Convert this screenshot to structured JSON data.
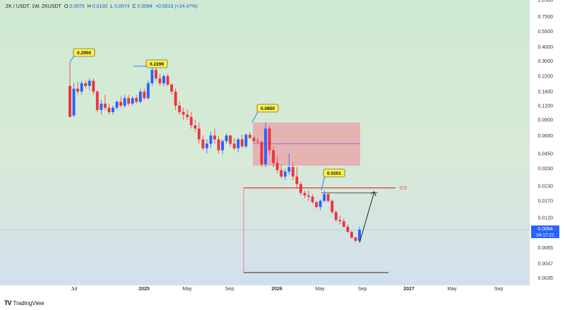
{
  "header": {
    "symbol": "ZK / USDT, 1W, ZKUSDT",
    "o_label": "O",
    "o_value": "0.0075",
    "h_label": "H",
    "h_value": "0.0100",
    "l_label": "L",
    "l_value": "0.0074",
    "c_label": "C",
    "c_value": "0.0094",
    "change": "+0.0018 (+24.47%)"
  },
  "branding": {
    "text": "TradingView",
    "mark": "TV"
  },
  "colors": {
    "up": "#2962ff",
    "down": "#ef3340",
    "bg_top": "#cfe9d2",
    "bg_bottom": "#d2e0ee",
    "zone_fill": "#e8a0a6",
    "zone_mid_line": "#9b6fd6",
    "resistance": "#e53935",
    "label_bg": "#fff04a",
    "price_tag": "#2962ff"
  },
  "chart_data": {
    "type": "candlestick",
    "y_scale": "log",
    "y_ticks": [
      "1.0500",
      "0.7500",
      "0.5500",
      "0.4000",
      "0.3000",
      "0.2200",
      "0.1600",
      "0.1200",
      "0.0900",
      "0.0650",
      "0.0450",
      "0.0330",
      "0.0230",
      "0.0170",
      "0.0120",
      "0.0065",
      "0.0047",
      "0.0035"
    ],
    "x_ticks": [
      "Jul",
      "2025",
      "May",
      "Sep",
      "2026",
      "May",
      "Sep",
      "2027",
      "May",
      "Sep"
    ],
    "x_ticks_bold": [
      "2025",
      "2026",
      "2027"
    ],
    "current_price": "0.0094",
    "countdown": "04:17:22",
    "callouts": [
      "0.2950",
      "0.2299",
      "0.0850",
      "0.0201"
    ],
    "fib_label": "0.5",
    "fib_level": 0.0222,
    "zone": {
      "top": 0.085,
      "bottom": 0.035,
      "mid": 0.055
    },
    "support_level": 0.0039,
    "target_level": 0.02,
    "candles": [
      {
        "o": 0.18,
        "h": 0.295,
        "l": 0.095,
        "c": 0.095
      },
      {
        "o": 0.098,
        "h": 0.19,
        "l": 0.095,
        "c": 0.17
      },
      {
        "o": 0.17,
        "h": 0.195,
        "l": 0.15,
        "c": 0.16
      },
      {
        "o": 0.16,
        "h": 0.2,
        "l": 0.15,
        "c": 0.19
      },
      {
        "o": 0.19,
        "h": 0.2,
        "l": 0.17,
        "c": 0.18
      },
      {
        "o": 0.18,
        "h": 0.21,
        "l": 0.165,
        "c": 0.2
      },
      {
        "o": 0.2,
        "h": 0.21,
        "l": 0.15,
        "c": 0.16
      },
      {
        "o": 0.16,
        "h": 0.165,
        "l": 0.105,
        "c": 0.11
      },
      {
        "o": 0.11,
        "h": 0.135,
        "l": 0.1,
        "c": 0.125
      },
      {
        "o": 0.125,
        "h": 0.15,
        "l": 0.11,
        "c": 0.115
      },
      {
        "o": 0.115,
        "h": 0.125,
        "l": 0.1,
        "c": 0.105
      },
      {
        "o": 0.105,
        "h": 0.12,
        "l": 0.1,
        "c": 0.115
      },
      {
        "o": 0.115,
        "h": 0.135,
        "l": 0.11,
        "c": 0.13
      },
      {
        "o": 0.13,
        "h": 0.145,
        "l": 0.115,
        "c": 0.12
      },
      {
        "o": 0.12,
        "h": 0.15,
        "l": 0.115,
        "c": 0.14
      },
      {
        "o": 0.14,
        "h": 0.15,
        "l": 0.12,
        "c": 0.125
      },
      {
        "o": 0.125,
        "h": 0.145,
        "l": 0.12,
        "c": 0.14
      },
      {
        "o": 0.14,
        "h": 0.15,
        "l": 0.125,
        "c": 0.13
      },
      {
        "o": 0.13,
        "h": 0.17,
        "l": 0.125,
        "c": 0.16
      },
      {
        "o": 0.16,
        "h": 0.17,
        "l": 0.135,
        "c": 0.14
      },
      {
        "o": 0.14,
        "h": 0.2,
        "l": 0.135,
        "c": 0.19
      },
      {
        "o": 0.19,
        "h": 0.27,
        "l": 0.18,
        "c": 0.25
      },
      {
        "o": 0.25,
        "h": 0.26,
        "l": 0.2,
        "c": 0.21
      },
      {
        "o": 0.21,
        "h": 0.23,
        "l": 0.18,
        "c": 0.19
      },
      {
        "o": 0.19,
        "h": 0.23,
        "l": 0.18,
        "c": 0.22
      },
      {
        "o": 0.22,
        "h": 0.23,
        "l": 0.18,
        "c": 0.185
      },
      {
        "o": 0.185,
        "h": 0.19,
        "l": 0.15,
        "c": 0.16
      },
      {
        "o": 0.16,
        "h": 0.17,
        "l": 0.11,
        "c": 0.12
      },
      {
        "o": 0.12,
        "h": 0.13,
        "l": 0.1,
        "c": 0.105
      },
      {
        "o": 0.105,
        "h": 0.115,
        "l": 0.09,
        "c": 0.1
      },
      {
        "o": 0.1,
        "h": 0.11,
        "l": 0.09,
        "c": 0.095
      },
      {
        "o": 0.095,
        "h": 0.105,
        "l": 0.075,
        "c": 0.08
      },
      {
        "o": 0.08,
        "h": 0.09,
        "l": 0.07,
        "c": 0.075
      },
      {
        "o": 0.075,
        "h": 0.085,
        "l": 0.055,
        "c": 0.06
      },
      {
        "o": 0.06,
        "h": 0.065,
        "l": 0.048,
        "c": 0.05
      },
      {
        "o": 0.05,
        "h": 0.06,
        "l": 0.045,
        "c": 0.055
      },
      {
        "o": 0.055,
        "h": 0.07,
        "l": 0.05,
        "c": 0.065
      },
      {
        "o": 0.065,
        "h": 0.075,
        "l": 0.055,
        "c": 0.06
      },
      {
        "o": 0.06,
        "h": 0.065,
        "l": 0.045,
        "c": 0.048
      },
      {
        "o": 0.048,
        "h": 0.06,
        "l": 0.044,
        "c": 0.058
      },
      {
        "o": 0.058,
        "h": 0.068,
        "l": 0.055,
        "c": 0.065
      },
      {
        "o": 0.065,
        "h": 0.066,
        "l": 0.052,
        "c": 0.055
      },
      {
        "o": 0.055,
        "h": 0.062,
        "l": 0.048,
        "c": 0.05
      },
      {
        "o": 0.05,
        "h": 0.062,
        "l": 0.046,
        "c": 0.06
      },
      {
        "o": 0.06,
        "h": 0.066,
        "l": 0.05,
        "c": 0.052
      },
      {
        "o": 0.052,
        "h": 0.068,
        "l": 0.05,
        "c": 0.066
      },
      {
        "o": 0.066,
        "h": 0.07,
        "l": 0.06,
        "c": 0.062
      },
      {
        "o": 0.062,
        "h": 0.064,
        "l": 0.056,
        "c": 0.058
      },
      {
        "o": 0.058,
        "h": 0.062,
        "l": 0.055,
        "c": 0.057
      },
      {
        "o": 0.057,
        "h": 0.058,
        "l": 0.034,
        "c": 0.036
      },
      {
        "o": 0.036,
        "h": 0.085,
        "l": 0.034,
        "c": 0.075
      },
      {
        "o": 0.075,
        "h": 0.08,
        "l": 0.044,
        "c": 0.048
      },
      {
        "o": 0.048,
        "h": 0.052,
        "l": 0.034,
        "c": 0.037
      },
      {
        "o": 0.037,
        "h": 0.042,
        "l": 0.03,
        "c": 0.032
      },
      {
        "o": 0.032,
        "h": 0.036,
        "l": 0.027,
        "c": 0.028
      },
      {
        "o": 0.028,
        "h": 0.033,
        "l": 0.026,
        "c": 0.031
      },
      {
        "o": 0.031,
        "h": 0.045,
        "l": 0.029,
        "c": 0.034
      },
      {
        "o": 0.034,
        "h": 0.037,
        "l": 0.026,
        "c": 0.028
      },
      {
        "o": 0.028,
        "h": 0.034,
        "l": 0.022,
        "c": 0.024
      },
      {
        "o": 0.024,
        "h": 0.025,
        "l": 0.019,
        "c": 0.02
      },
      {
        "o": 0.02,
        "h": 0.021,
        "l": 0.018,
        "c": 0.019
      },
      {
        "o": 0.019,
        "h": 0.021,
        "l": 0.017,
        "c": 0.0185
      },
      {
        "o": 0.0185,
        "h": 0.0195,
        "l": 0.016,
        "c": 0.0165
      },
      {
        "o": 0.0165,
        "h": 0.017,
        "l": 0.0145,
        "c": 0.015
      },
      {
        "o": 0.015,
        "h": 0.0175,
        "l": 0.014,
        "c": 0.017
      },
      {
        "o": 0.017,
        "h": 0.021,
        "l": 0.0165,
        "c": 0.0195
      },
      {
        "o": 0.0195,
        "h": 0.02,
        "l": 0.0165,
        "c": 0.017
      },
      {
        "o": 0.017,
        "h": 0.0175,
        "l": 0.013,
        "c": 0.0135
      },
      {
        "o": 0.0135,
        "h": 0.014,
        "l": 0.011,
        "c": 0.0115
      },
      {
        "o": 0.0115,
        "h": 0.0125,
        "l": 0.0105,
        "c": 0.0112
      },
      {
        "o": 0.0112,
        "h": 0.0118,
        "l": 0.0098,
        "c": 0.01
      },
      {
        "o": 0.01,
        "h": 0.0105,
        "l": 0.0088,
        "c": 0.009
      },
      {
        "o": 0.009,
        "h": 0.0092,
        "l": 0.0078,
        "c": 0.008
      },
      {
        "o": 0.008,
        "h": 0.0082,
        "l": 0.0073,
        "c": 0.0075
      },
      {
        "o": 0.0075,
        "h": 0.01,
        "l": 0.0074,
        "c": 0.0094
      }
    ]
  }
}
